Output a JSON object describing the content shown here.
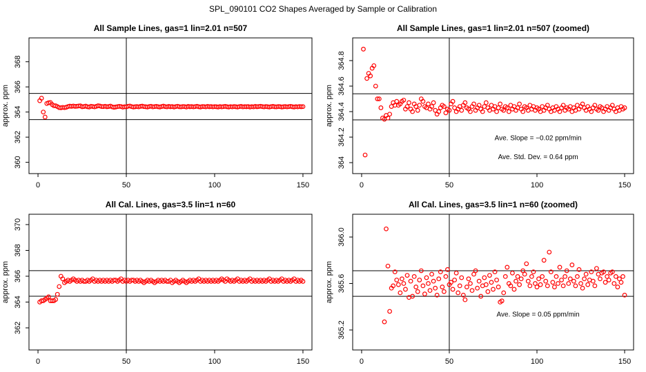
{
  "title": "SPL_090101  CO2 Shapes Averaged by Sample or Calibration",
  "chart_data": [
    {
      "type": "scatter",
      "title": "All Sample Lines, gas=1 lin=2.01 n=507",
      "ylabel": "approx. ppm",
      "color": "#ff0000",
      "xlim": [
        -5.1,
        155.1
      ],
      "xticks": [
        0,
        50,
        100,
        150
      ],
      "ylim": [
        359.1,
        369.9
      ],
      "yticks": [
        360,
        362,
        364,
        366,
        368
      ],
      "hlines": [
        365.48,
        363.4
      ],
      "vline": 50,
      "annotations": [],
      "x": [
        1,
        2,
        3,
        4,
        5,
        6,
        7,
        8,
        9,
        10,
        11,
        12,
        13,
        14,
        15,
        16,
        17,
        18,
        19,
        20,
        21,
        22,
        23,
        24,
        25,
        26,
        27,
        28,
        29,
        30,
        31,
        32,
        33,
        34,
        35,
        36,
        37,
        38,
        39,
        40,
        41,
        42,
        43,
        44,
        45,
        46,
        47,
        48,
        49,
        50,
        51,
        52,
        53,
        54,
        55,
        56,
        57,
        58,
        59,
        60,
        61,
        62,
        63,
        64,
        65,
        66,
        67,
        68,
        69,
        70,
        71,
        72,
        73,
        74,
        75,
        76,
        77,
        78,
        79,
        80,
        81,
        82,
        83,
        84,
        85,
        86,
        87,
        88,
        89,
        90,
        91,
        92,
        93,
        94,
        95,
        96,
        97,
        98,
        99,
        100,
        101,
        102,
        103,
        104,
        105,
        106,
        107,
        108,
        109,
        110,
        111,
        112,
        113,
        114,
        115,
        116,
        117,
        118,
        119,
        120,
        121,
        122,
        123,
        124,
        125,
        126,
        127,
        128,
        129,
        130,
        131,
        132,
        133,
        134,
        135,
        136,
        137,
        138,
        139,
        140,
        141,
        142,
        143,
        144,
        145,
        146,
        147,
        148,
        149,
        150
      ],
      "values": [
        364.9,
        365.1,
        364.0,
        363.6,
        364.68,
        364.74,
        364.76,
        364.6,
        364.5,
        364.5,
        364.43,
        364.35,
        364.34,
        364.37,
        364.35,
        364.38,
        364.44,
        364.47,
        364.45,
        364.48,
        364.45,
        364.46,
        364.48,
        364.49,
        364.42,
        364.44,
        364.47,
        364.42,
        364.4,
        364.46,
        364.44,
        364.41,
        364.45,
        364.5,
        364.48,
        364.44,
        364.43,
        364.46,
        364.42,
        364.44,
        364.47,
        364.41,
        364.38,
        364.4,
        364.43,
        364.45,
        364.44,
        364.39,
        364.42,
        364.41,
        364.46,
        364.48,
        364.43,
        364.4,
        364.42,
        364.44,
        364.41,
        364.45,
        364.47,
        364.43,
        364.42,
        364.4,
        364.44,
        364.46,
        364.41,
        364.43,
        364.45,
        364.42,
        364.4,
        364.44,
        364.47,
        364.43,
        364.41,
        364.45,
        364.42,
        364.44,
        364.4,
        364.43,
        364.46,
        364.42,
        364.41,
        364.44,
        364.43,
        364.4,
        364.45,
        364.42,
        364.44,
        364.41,
        364.43,
        364.46,
        364.42,
        364.4,
        364.44,
        364.43,
        364.41,
        364.45,
        364.42,
        364.44,
        364.41,
        364.43,
        364.42,
        364.4,
        364.44,
        364.41,
        364.43,
        364.45,
        364.42,
        364.4,
        364.43,
        364.41,
        364.44,
        364.42,
        364.4,
        364.43,
        364.45,
        364.41,
        364.43,
        364.42,
        364.44,
        364.4,
        364.43,
        364.41,
        364.45,
        364.42,
        364.44,
        364.46,
        364.43,
        364.41,
        364.44,
        364.42,
        364.4,
        364.43,
        364.45,
        364.42,
        364.41,
        364.44,
        364.43,
        364.4,
        364.42,
        364.44,
        364.41,
        364.43,
        364.45,
        364.42,
        364.4,
        364.43,
        364.41,
        364.44,
        364.42,
        364.43
      ]
    },
    {
      "type": "scatter",
      "title": "All Sample Lines, gas=1 lin=2.01 n=507 (zoomed)",
      "ylabel": "approx. ppm",
      "color": "#ff0000",
      "xlim": [
        -5.1,
        155.1
      ],
      "xticks": [
        0,
        50,
        100,
        150
      ],
      "ylim": [
        363.914,
        364.978
      ],
      "yticks": [
        364.0,
        364.2,
        364.4,
        364.6,
        364.8
      ],
      "hlines": [
        364.54,
        364.335
      ],
      "vline": 50,
      "annotations": [
        "Ave. Slope =  −0.02  ppm/min",
        "Ave. Std. Dev. =  0.64  ppm"
      ],
      "x": [
        1,
        2,
        3,
        4,
        5,
        6,
        7,
        8,
        9,
        10,
        11,
        12,
        13,
        14,
        15,
        16,
        17,
        18,
        19,
        20,
        21,
        22,
        23,
        24,
        25,
        26,
        27,
        28,
        29,
        30,
        31,
        32,
        33,
        34,
        35,
        36,
        37,
        38,
        39,
        40,
        41,
        42,
        43,
        44,
        45,
        46,
        47,
        48,
        49,
        50,
        51,
        52,
        53,
        54,
        55,
        56,
        57,
        58,
        59,
        60,
        61,
        62,
        63,
        64,
        65,
        66,
        67,
        68,
        69,
        70,
        71,
        72,
        73,
        74,
        75,
        76,
        77,
        78,
        79,
        80,
        81,
        82,
        83,
        84,
        85,
        86,
        87,
        88,
        89,
        90,
        91,
        92,
        93,
        94,
        95,
        96,
        97,
        98,
        99,
        100,
        101,
        102,
        103,
        104,
        105,
        106,
        107,
        108,
        109,
        110,
        111,
        112,
        113,
        114,
        115,
        116,
        117,
        118,
        119,
        120,
        121,
        122,
        123,
        124,
        125,
        126,
        127,
        128,
        129,
        130,
        131,
        132,
        133,
        134,
        135,
        136,
        137,
        138,
        139,
        140,
        141,
        142,
        143,
        144,
        145,
        146,
        147,
        148,
        149,
        150
      ],
      "values": [
        364.89,
        364.06,
        364.66,
        364.7,
        364.68,
        364.74,
        364.76,
        364.6,
        364.5,
        364.5,
        364.43,
        364.35,
        364.34,
        364.37,
        364.35,
        364.38,
        364.44,
        364.47,
        364.45,
        364.48,
        364.45,
        364.46,
        364.48,
        364.49,
        364.42,
        364.44,
        364.47,
        364.42,
        364.4,
        364.46,
        364.44,
        364.41,
        364.45,
        364.5,
        364.48,
        364.44,
        364.43,
        364.46,
        364.42,
        364.44,
        364.47,
        364.41,
        364.38,
        364.4,
        364.43,
        364.45,
        364.44,
        364.39,
        364.42,
        364.41,
        364.46,
        364.48,
        364.43,
        364.4,
        364.42,
        364.44,
        364.41,
        364.45,
        364.47,
        364.43,
        364.42,
        364.4,
        364.44,
        364.46,
        364.41,
        364.43,
        364.45,
        364.42,
        364.4,
        364.44,
        364.47,
        364.43,
        364.41,
        364.45,
        364.42,
        364.44,
        364.4,
        364.43,
        364.46,
        364.42,
        364.41,
        364.44,
        364.43,
        364.4,
        364.45,
        364.42,
        364.44,
        364.41,
        364.43,
        364.46,
        364.42,
        364.4,
        364.44,
        364.43,
        364.41,
        364.45,
        364.42,
        364.44,
        364.41,
        364.43,
        364.42,
        364.4,
        364.44,
        364.41,
        364.43,
        364.45,
        364.42,
        364.4,
        364.43,
        364.41,
        364.44,
        364.42,
        364.4,
        364.43,
        364.45,
        364.41,
        364.43,
        364.42,
        364.44,
        364.4,
        364.43,
        364.41,
        364.45,
        364.42,
        364.44,
        364.46,
        364.43,
        364.41,
        364.44,
        364.42,
        364.4,
        364.43,
        364.45,
        364.42,
        364.41,
        364.44,
        364.43,
        364.4,
        364.42,
        364.44,
        364.41,
        364.43,
        364.45,
        364.42,
        364.4,
        364.43,
        364.41,
        364.44,
        364.42,
        364.43
      ]
    },
    {
      "type": "scatter",
      "title": "All Cal. Lines, gas=3.5 lin=1 n=60",
      "ylabel": "approx. ppm",
      "color": "#ff0000",
      "xlim": [
        -5.1,
        155.1
      ],
      "xticks": [
        0,
        50,
        100,
        150
      ],
      "ylim": [
        360.29,
        370.8
      ],
      "yticks": [
        362,
        364,
        366,
        368,
        370
      ],
      "hlines": [
        366.43,
        364.45
      ],
      "vline": 50,
      "annotations": [],
      "x": [
        1,
        2,
        3,
        4,
        5,
        6,
        7,
        8,
        9,
        10,
        11,
        12,
        13,
        14,
        15,
        16,
        17,
        18,
        19,
        20,
        21,
        22,
        23,
        24,
        25,
        26,
        27,
        28,
        29,
        30,
        31,
        32,
        33,
        34,
        35,
        36,
        37,
        38,
        39,
        40,
        41,
        42,
        43,
        44,
        45,
        46,
        47,
        48,
        49,
        50,
        51,
        52,
        53,
        54,
        55,
        56,
        57,
        58,
        59,
        60,
        61,
        62,
        63,
        64,
        65,
        66,
        67,
        68,
        69,
        70,
        71,
        72,
        73,
        74,
        75,
        76,
        77,
        78,
        79,
        80,
        81,
        82,
        83,
        84,
        85,
        86,
        87,
        88,
        89,
        90,
        91,
        92,
        93,
        94,
        95,
        96,
        97,
        98,
        99,
        100,
        101,
        102,
        103,
        104,
        105,
        106,
        107,
        108,
        109,
        110,
        111,
        112,
        113,
        114,
        115,
        116,
        117,
        118,
        119,
        120,
        121,
        122,
        123,
        124,
        125,
        126,
        127,
        128,
        129,
        130,
        131,
        132,
        133,
        134,
        135,
        136,
        137,
        138,
        139,
        140,
        141,
        142,
        143,
        144,
        145,
        146,
        147,
        148,
        149,
        150
      ],
      "values": [
        364.0,
        364.1,
        364.1,
        364.2,
        364.3,
        364.4,
        364.1,
        364.1,
        364.1,
        364.2,
        364.6,
        365.2,
        366.0,
        365.8,
        365.5,
        365.6,
        365.7,
        365.6,
        365.7,
        365.8,
        365.7,
        365.6,
        365.7,
        365.6,
        365.7,
        365.6,
        365.6,
        365.7,
        365.6,
        365.7,
        365.8,
        365.6,
        365.7,
        365.6,
        365.7,
        365.6,
        365.7,
        365.6,
        365.7,
        365.6,
        365.7,
        365.6,
        365.7,
        365.7,
        365.6,
        365.7,
        365.8,
        365.6,
        365.7,
        365.6,
        365.7,
        365.6,
        365.7,
        365.7,
        365.6,
        365.7,
        365.6,
        365.7,
        365.6,
        365.5,
        365.6,
        365.7,
        365.6,
        365.7,
        365.6,
        365.5,
        365.6,
        365.7,
        365.6,
        365.7,
        365.6,
        365.7,
        365.6,
        365.6,
        365.7,
        365.5,
        365.6,
        365.7,
        365.6,
        365.5,
        365.6,
        365.7,
        365.6,
        365.5,
        365.6,
        365.7,
        365.6,
        365.7,
        365.6,
        365.7,
        365.8,
        365.6,
        365.7,
        365.6,
        365.7,
        365.6,
        365.7,
        365.6,
        365.7,
        365.6,
        365.7,
        365.6,
        365.7,
        365.8,
        365.7,
        365.6,
        365.8,
        365.7,
        365.6,
        365.7,
        365.6,
        365.7,
        365.8,
        365.6,
        365.7,
        365.6,
        365.7,
        365.6,
        365.7,
        365.8,
        365.6,
        365.7,
        365.6,
        365.7,
        365.6,
        365.7,
        365.6,
        365.7,
        365.6,
        365.7,
        365.8,
        365.6,
        365.7,
        365.6,
        365.7,
        365.6,
        365.7,
        365.8,
        365.6,
        365.7,
        365.6,
        365.7,
        365.6,
        365.7,
        365.8,
        365.6,
        365.7,
        365.6,
        365.7,
        365.6
      ]
    },
    {
      "type": "scatter",
      "title": "All Cal. Lines, gas=3.5 lin=1 n=60 (zoomed)",
      "ylabel": "approx. ppm",
      "color": "#ff0000",
      "xlim": [
        -5.1,
        155.1
      ],
      "xticks": [
        0,
        50,
        100,
        150
      ],
      "ylim": [
        365.028,
        366.196
      ],
      "yticks": [
        365.2,
        365.6,
        {
          "value": 366,
          "label": "366.0"
        }
      ],
      "hlines": [
        365.71,
        365.49
      ],
      "vline": 50,
      "annotations": [
        "Ave. Slope =  0.05  ppm/min"
      ],
      "x": [
        1,
        2,
        3,
        4,
        5,
        6,
        7,
        8,
        9,
        10,
        11,
        12,
        13,
        14,
        15,
        16,
        17,
        18,
        19,
        20,
        21,
        22,
        23,
        24,
        25,
        26,
        27,
        28,
        29,
        30,
        31,
        32,
        33,
        34,
        35,
        36,
        37,
        38,
        39,
        40,
        41,
        42,
        43,
        44,
        45,
        46,
        47,
        48,
        49,
        50,
        51,
        52,
        53,
        54,
        55,
        56,
        57,
        58,
        59,
        60,
        61,
        62,
        63,
        64,
        65,
        66,
        67,
        68,
        69,
        70,
        71,
        72,
        73,
        74,
        75,
        76,
        77,
        78,
        79,
        80,
        81,
        82,
        83,
        84,
        85,
        86,
        87,
        88,
        89,
        90,
        91,
        92,
        93,
        94,
        95,
        96,
        97,
        98,
        99,
        100,
        101,
        102,
        103,
        104,
        105,
        106,
        107,
        108,
        109,
        110,
        111,
        112,
        113,
        114,
        115,
        116,
        117,
        118,
        119,
        120,
        121,
        122,
        123,
        124,
        125,
        126,
        127,
        128,
        129,
        130,
        131,
        132,
        133,
        134,
        135,
        136,
        137,
        138,
        139,
        140,
        141,
        142,
        143,
        144,
        145,
        146,
        147,
        148,
        149,
        150
      ],
      "values": [
        null,
        null,
        null,
        null,
        null,
        null,
        null,
        null,
        null,
        null,
        null,
        null,
        365.27,
        366.07,
        365.75,
        365.36,
        365.56,
        365.58,
        365.7,
        365.63,
        365.59,
        365.52,
        365.64,
        365.6,
        365.55,
        365.67,
        365.48,
        365.62,
        365.49,
        365.66,
        365.57,
        365.53,
        365.63,
        365.71,
        365.58,
        365.51,
        365.65,
        365.6,
        365.54,
        365.68,
        365.62,
        365.56,
        365.5,
        365.64,
        365.7,
        365.57,
        365.53,
        365.66,
        365.72,
        365.59,
        365.61,
        365.55,
        365.63,
        365.69,
        365.52,
        365.58,
        365.65,
        365.5,
        365.46,
        365.57,
        365.64,
        365.6,
        365.54,
        365.68,
        365.71,
        365.56,
        365.62,
        365.49,
        365.58,
        365.65,
        365.59,
        365.53,
        365.67,
        365.61,
        365.55,
        365.7,
        365.63,
        365.57,
        365.44,
        365.45,
        365.52,
        365.66,
        365.74,
        365.6,
        365.58,
        365.69,
        365.55,
        365.62,
        365.66,
        365.59,
        365.64,
        365.71,
        365.68,
        365.77,
        365.62,
        365.58,
        365.66,
        365.7,
        365.6,
        365.57,
        365.64,
        365.59,
        365.66,
        365.8,
        365.62,
        365.58,
        365.87,
        365.7,
        365.61,
        365.57,
        365.66,
        365.6,
        365.74,
        365.63,
        365.58,
        365.66,
        365.71,
        365.6,
        365.64,
        365.76,
        365.62,
        365.58,
        365.66,
        365.72,
        365.6,
        365.56,
        365.64,
        365.68,
        365.59,
        365.63,
        365.7,
        365.62,
        365.58,
        365.73,
        365.68,
        365.64,
        365.69,
        365.7,
        365.61,
        365.66,
        365.63,
        365.69,
        365.7,
        365.6,
        365.66,
        365.57,
        365.64,
        365.61,
        365.66,
        365.5
      ]
    }
  ]
}
